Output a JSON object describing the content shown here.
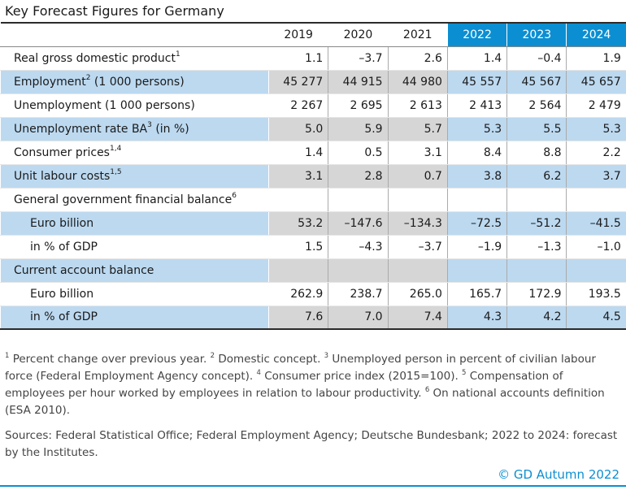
{
  "title": "Key Forecast Figures for Germany",
  "colors": {
    "forecast_header": "#0b8fd2",
    "row_band": "#bcd9f0",
    "historical_band": "#d6d6d6"
  },
  "chart_data": {
    "type": "table",
    "columns": [
      "2019",
      "2020",
      "2021",
      "2022",
      "2023",
      "2024"
    ],
    "forecast_columns": [
      "2022",
      "2023",
      "2024"
    ],
    "rows": [
      {
        "label": "Real gross domestic product",
        "sup": "1",
        "values": [
          "1.1",
          "–3.7",
          "2.6",
          "1.4",
          "–0.4",
          "1.9"
        ]
      },
      {
        "label": "Employment",
        "sup": "2",
        "label_after": " (1 000 persons)",
        "values": [
          "45 277",
          "44 915",
          "44 980",
          "45 557",
          "45 567",
          "45 657"
        ]
      },
      {
        "label": "Unemployment (1 000 persons)",
        "values": [
          "2 267",
          "2 695",
          "2 613",
          "2 413",
          "2 564",
          "2 479"
        ]
      },
      {
        "label": "Unemployment rate BA",
        "sup": "3",
        "label_after": " (in %)",
        "values": [
          "5.0",
          "5.9",
          "5.7",
          "5.3",
          "5.5",
          "5.3"
        ]
      },
      {
        "label": "Consumer prices",
        "sup": "1,4",
        "values": [
          "1.4",
          "0.5",
          "3.1",
          "8.4",
          "8.8",
          "2.2"
        ]
      },
      {
        "label": "Unit labour costs",
        "sup": "1,5",
        "values": [
          "3.1",
          "2.8",
          "0.7",
          "3.8",
          "6.2",
          "3.7"
        ]
      },
      {
        "label": "General government financial balance",
        "sup": "6",
        "values": [
          "",
          "",
          "",
          "",
          "",
          ""
        ]
      },
      {
        "label": "Euro billion",
        "sub": true,
        "values": [
          "53.2",
          "–147.6",
          "–134.3",
          "–72.5",
          "–51.2",
          "–41.5"
        ]
      },
      {
        "label": "in % of GDP",
        "sub": true,
        "values": [
          "1.5",
          "–4.3",
          "–3.7",
          "–1.9",
          "–1.3",
          "–1.0"
        ]
      },
      {
        "label": "Current account balance",
        "values": [
          "",
          "",
          "",
          "",
          "",
          ""
        ]
      },
      {
        "label": "Euro billion",
        "sub": true,
        "values": [
          "262.9",
          "238.7",
          "265.0",
          "165.7",
          "172.9",
          "193.5"
        ]
      },
      {
        "label": "in % of GDP",
        "sub": true,
        "values": [
          "7.6",
          "7.0",
          "7.4",
          "4.3",
          "4.2",
          "4.5"
        ]
      }
    ]
  },
  "footnotes": [
    {
      "sup": "1",
      "text": " Percent change over previous year. "
    },
    {
      "sup": "2",
      "text": " Domestic concept. "
    },
    {
      "sup": "3",
      "text": " Unemployed person in percent of civilian labour force (Federal Employment Agency concept). "
    },
    {
      "sup": "4",
      "text": " Consumer price index (2015=100). "
    },
    {
      "sup": "5",
      "text": " Compensation of employees per hour worked by employees in relation to labour productivity. "
    },
    {
      "sup": "6",
      "text": " On national accounts definition (ESA 2010)."
    }
  ],
  "sources": "Sources: Federal Statistical Office; Federal Employment Agency; Deutsche Bundesbank; 2022 to 2024: forecast by the Institutes.",
  "copyright": "© GD Autumn 2022"
}
